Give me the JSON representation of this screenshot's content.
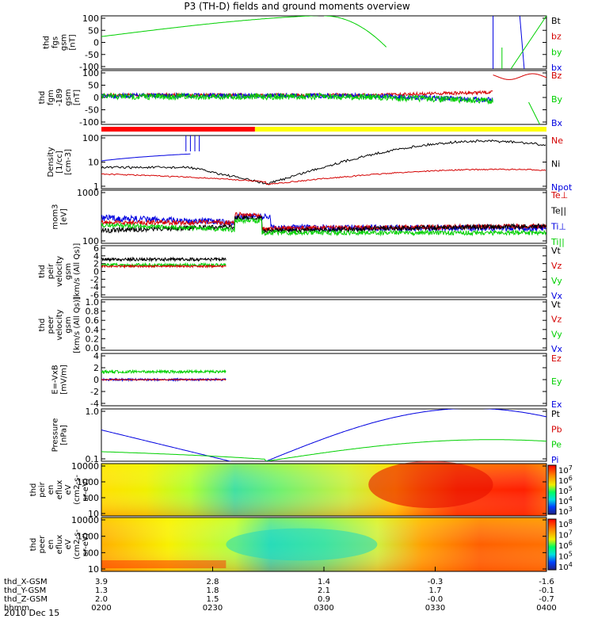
{
  "title": "P3 (TH-D) fields and ground moments overview",
  "date": "2010 Dec 15",
  "colors": {
    "black": "#000000",
    "red": "#d40000",
    "green": "#00d000",
    "blue": "#0000e0",
    "orbit_red": "#ff0000",
    "orbit_yellow": "#ffff00"
  },
  "orbit_bar": {
    "red_until_fraction": 0.345
  },
  "chart_data": [
    {
      "type": "line",
      "id": "fgs",
      "ylabel_lines": [
        "thd",
        "fgs",
        "gsm",
        "[nT]"
      ],
      "ylim": [
        -100,
        100
      ],
      "yticks": [
        "100",
        "50",
        "0",
        "-50",
        "-100"
      ],
      "legend": [
        {
          "name": "Bt",
          "color": "#000000"
        },
        {
          "name": "bz",
          "color": "#d40000"
        },
        {
          "name": "by",
          "color": "#00d000"
        },
        {
          "name": "bx",
          "color": "#0000e0"
        }
      ]
    },
    {
      "type": "line",
      "id": "fgm",
      "ylabel_lines": [
        "thd",
        "fgm",
        "-189",
        "gsm",
        "[nT]"
      ],
      "ylim": [
        -120,
        100
      ],
      "yticks": [
        "100",
        "50",
        "0",
        "-50",
        "-100"
      ],
      "legend": [
        {
          "name": "Bz",
          "color": "#d40000"
        },
        {
          "name": "By",
          "color": "#00d000"
        },
        {
          "name": "Bx",
          "color": "#0000e0"
        }
      ]
    },
    {
      "type": "line",
      "id": "density",
      "ylabel_lines": [
        "Density",
        "[1/cc]",
        "[cm-3]"
      ],
      "ylim": [
        0.3,
        200
      ],
      "yscale": "log",
      "yticks": [
        "100",
        "10",
        "1"
      ],
      "legend": [
        {
          "name": "Ne",
          "color": "#d40000"
        },
        {
          "name": "Ni",
          "color": "#000000"
        },
        {
          "name": "Npot",
          "color": "#0000e0"
        }
      ]
    },
    {
      "type": "line",
      "id": "temp",
      "ylabel_lines": [
        "mom3",
        "[eV]"
      ],
      "ylim": [
        100,
        10000
      ],
      "yscale": "log",
      "yticks": [
        "1000",
        "100"
      ],
      "legend": [
        {
          "name": "Te⊥",
          "color": "#d40000"
        },
        {
          "name": "Te||",
          "color": "#000000"
        },
        {
          "name": "Ti⊥",
          "color": "#0000e0"
        },
        {
          "name": "Ti||",
          "color": "#00d000"
        }
      ]
    },
    {
      "type": "line",
      "id": "vi",
      "ylabel_lines": [
        "thd",
        "peir",
        "velocity",
        "gsm",
        "[km/s (All Qs)]"
      ],
      "ylim": [
        -6,
        6
      ],
      "yticks": [
        "6",
        "4",
        "2",
        "0",
        "-2",
        "-4",
        "-6"
      ],
      "legend": [
        {
          "name": "Vt",
          "color": "#000000"
        },
        {
          "name": "Vz",
          "color": "#d40000"
        },
        {
          "name": "Vy",
          "color": "#00d000"
        },
        {
          "name": "Vx",
          "color": "#0000e0"
        }
      ]
    },
    {
      "type": "line",
      "id": "ve",
      "ylabel_lines": [
        "thd",
        "peer",
        "velocity",
        "gsm",
        "[km/s (All Qs)]"
      ],
      "ylim": [
        0,
        1
      ],
      "yticks": [
        "1.0",
        "0.8",
        "0.6",
        "0.4",
        "0.2",
        "0.0"
      ],
      "legend": [
        {
          "name": "Vt",
          "color": "#000000"
        },
        {
          "name": "Vz",
          "color": "#d40000"
        },
        {
          "name": "Vy",
          "color": "#00d000"
        },
        {
          "name": "Vx",
          "color": "#0000e0"
        }
      ]
    },
    {
      "type": "line",
      "id": "efield",
      "ylabel_lines": [
        "E=-VxB",
        "[mV/m]"
      ],
      "ylim": [
        -4,
        4
      ],
      "yticks": [
        "4",
        "2",
        "0",
        "-2",
        "-4"
      ],
      "legend": [
        {
          "name": "Ez",
          "color": "#d40000"
        },
        {
          "name": "Ey",
          "color": "#00d000"
        },
        {
          "name": "Ex",
          "color": "#0000e0"
        }
      ]
    },
    {
      "type": "line",
      "id": "pressure",
      "ylabel_lines": [
        "Pressure",
        "[nPa]"
      ],
      "ylim": [
        0.02,
        3
      ],
      "yscale": "log",
      "yticks": [
        "1.0",
        "0.1"
      ],
      "legend": [
        {
          "name": "Pt",
          "color": "#000000"
        },
        {
          "name": "Pb",
          "color": "#d40000"
        },
        {
          "name": "Pe",
          "color": "#00d000"
        },
        {
          "name": "Pi",
          "color": "#0000e0"
        }
      ]
    },
    {
      "type": "heatmap",
      "id": "ion_spec",
      "ylabel_lines": [
        "thd",
        "peir",
        "en",
        "eflux",
        "eV",
        "(cm2-s-",
        "sr-eV)"
      ],
      "yscale": "log",
      "yticks": [
        "10000",
        "1000",
        "100",
        "10"
      ],
      "colorbar": {
        "exp_labels": [
          "7",
          "6",
          "5",
          "4",
          "3"
        ]
      }
    },
    {
      "type": "heatmap",
      "id": "ele_spec",
      "ylabel_lines": [
        "thd",
        "peer",
        "en",
        "eflux",
        "eV",
        "(cm2-s-",
        "sr-eV)"
      ],
      "yscale": "log",
      "yticks": [
        "10000",
        "1000",
        "100",
        "10"
      ],
      "colorbar": {
        "exp_labels": [
          "8",
          "7",
          "6",
          "5",
          "4"
        ]
      }
    }
  ],
  "xaxis": {
    "rows": [
      {
        "label": "thd_X-GSM",
        "values": [
          "3.9",
          "2.8",
          "1.4",
          "-0.3",
          "-1.6"
        ]
      },
      {
        "label": "thd_Y-GSM",
        "values": [
          "1.3",
          "1.8",
          "2.1",
          "1.7",
          "-0.1"
        ]
      },
      {
        "label": "thd_Z-GSM",
        "values": [
          "2.0",
          "1.5",
          "0.9",
          "-0.0",
          "-0.7"
        ]
      },
      {
        "label": "hhmm",
        "values": [
          "0200",
          "0230",
          "0300",
          "0330",
          "0400"
        ]
      }
    ]
  }
}
